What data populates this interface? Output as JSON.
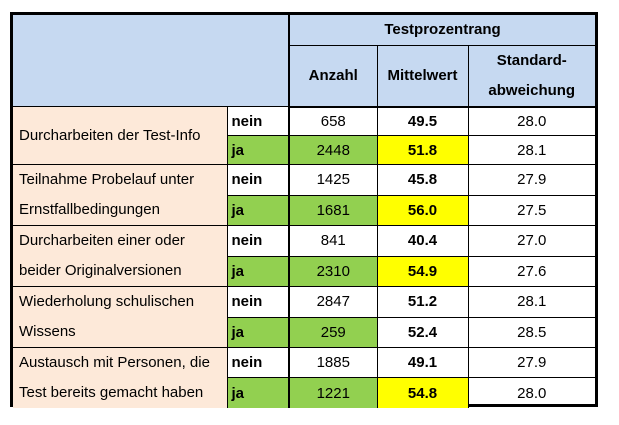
{
  "header": {
    "group_title": "Testprozentrang",
    "col_count": "Anzahl",
    "col_mean": "Mittelwert",
    "col_sd_line1": "Standard-",
    "col_sd_line2": "abweichung"
  },
  "rows": [
    {
      "label_line1": "Durcharbeiten der Test-Info",
      "label_line2": "",
      "nein": {
        "label": "nein",
        "anzahl": "658",
        "mittelwert": "49.5",
        "sd": "28.0"
      },
      "ja": {
        "label": "ja",
        "anzahl": "2448",
        "mittelwert": "51.8",
        "sd": "28.1"
      }
    },
    {
      "label_line1": "Teilnahme Probelauf unter",
      "label_line2": "Ernstfallbedingungen",
      "nein": {
        "label": "nein",
        "anzahl": "1425",
        "mittelwert": "45.8",
        "sd": "27.9"
      },
      "ja": {
        "label": "ja",
        "anzahl": "1681",
        "mittelwert": "56.0",
        "sd": "27.5"
      }
    },
    {
      "label_line1": "Durcharbeiten einer oder",
      "label_line2": "beider Originalversionen",
      "nein": {
        "label": "nein",
        "anzahl": "841",
        "mittelwert": "40.4",
        "sd": "27.0"
      },
      "ja": {
        "label": "ja",
        "anzahl": "2310",
        "mittelwert": "54.9",
        "sd": "27.6"
      }
    },
    {
      "label_line1": "Wiederholung schulischen",
      "label_line2": "Wissens",
      "nein": {
        "label": "nein",
        "anzahl": "2847",
        "mittelwert": "51.2",
        "sd": "28.1"
      },
      "ja": {
        "label": "ja",
        "anzahl": "259",
        "mittelwert": "52.4",
        "sd": "28.5"
      }
    },
    {
      "label_line1": "Austausch mit Personen, die",
      "label_line2": "Test bereits gemacht haben",
      "nein": {
        "label": "nein",
        "anzahl": "1885",
        "mittelwert": "49.1",
        "sd": "27.9"
      },
      "ja": {
        "label": "ja",
        "anzahl": "1221",
        "mittelwert": "54.8",
        "sd": "28.0"
      }
    }
  ],
  "colors": {
    "header_bg": "#c6d9f1",
    "label_bg": "#fde9d9",
    "ja_bg": "#92d050",
    "highlight_bg": "#ffff00"
  }
}
